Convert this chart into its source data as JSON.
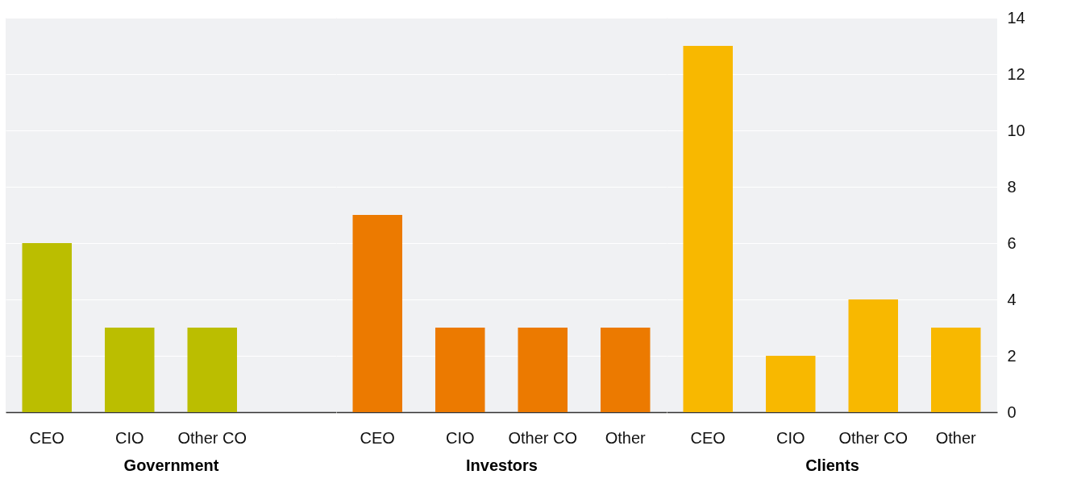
{
  "chart_data": [
    {
      "type": "bar",
      "xlabel": "Government",
      "categories": [
        "CEO",
        "CIO",
        "Other CO",
        null
      ],
      "values": [
        6,
        3,
        3,
        null
      ],
      "color": "#bbbe00",
      "ylim": [
        0,
        14
      ],
      "yticks": [
        0,
        2,
        4,
        6,
        8,
        10,
        12,
        14
      ],
      "grid": "y",
      "tick_labels": "x"
    },
    {
      "type": "bar",
      "xlabel": "Investors",
      "categories": [
        "CEO",
        "CIO",
        "Other CO",
        "Other"
      ],
      "values": [
        7,
        3,
        3,
        3
      ],
      "color": "#ec7a00",
      "ylim": [
        0,
        14
      ],
      "yticks": [
        0,
        2,
        4,
        6,
        8,
        10,
        12,
        14
      ],
      "grid": "y",
      "tick_labels": "x"
    },
    {
      "type": "bar",
      "xlabel": "Clients",
      "categories": [
        "CEO",
        "CIO",
        "Other CO",
        "Other"
      ],
      "values": [
        13,
        2,
        4,
        3
      ],
      "color": "#f8b800",
      "ylim": [
        0,
        14
      ],
      "yticks": [
        0,
        2,
        4,
        6,
        8,
        10,
        12,
        14
      ],
      "grid": "y"
    }
  ]
}
